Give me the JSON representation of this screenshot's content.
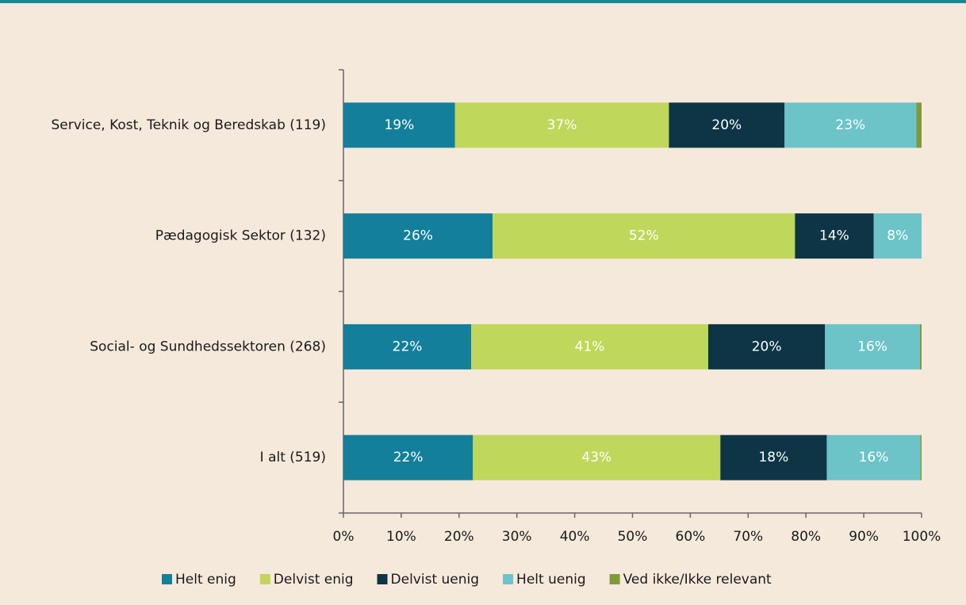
{
  "chart_data": {
    "type": "stacked_barh",
    "categories": [
      "Service, Kost, Teknik og Beredskab (119)",
      "Pædagogisk Sektor (132)",
      "Social- og Sundhedssektoren (268)",
      "I alt (519)"
    ],
    "series": [
      {
        "name": "Helt enig",
        "color": "#137f9a",
        "values": [
          19.3,
          25.8,
          22.1,
          22.4
        ],
        "value_labels": [
          "19%",
          "26%",
          "22%",
          "22%"
        ]
      },
      {
        "name": "Delvist enig",
        "color": "#bfd75a",
        "values": [
          37.0,
          52.3,
          41.0,
          42.8
        ],
        "value_labels": [
          "37%",
          "52%",
          "41%",
          "43%"
        ]
      },
      {
        "name": "Delvist uenig",
        "color": "#0d3545",
        "values": [
          20.0,
          13.6,
          20.2,
          18.4
        ],
        "value_labels": [
          "20%",
          "14%",
          "20%",
          "18%"
        ]
      },
      {
        "name": "Helt uenig",
        "color": "#6cc3c8",
        "values": [
          22.8,
          8.3,
          16.4,
          16.2
        ],
        "value_labels": [
          "23%",
          "8%",
          "16%",
          "16%"
        ]
      },
      {
        "name": "Ved ikke/Ikke relevant",
        "color": "#7f9a3a",
        "values": [
          0.9,
          0,
          0.3,
          0.2
        ]
      }
    ],
    "xlim": [
      0,
      100
    ],
    "xticks": [
      {
        "value": 0,
        "label": "0%"
      },
      {
        "value": 10,
        "label": "10%"
      },
      {
        "value": 20,
        "label": "20%"
      },
      {
        "value": 30,
        "label": "30%"
      },
      {
        "value": 40,
        "label": "40%"
      },
      {
        "value": 50,
        "label": "50%"
      },
      {
        "value": 60,
        "label": "60%"
      },
      {
        "value": 70,
        "label": "70%"
      },
      {
        "value": 80,
        "label": "80%"
      },
      {
        "value": 90,
        "label": "90%"
      },
      {
        "value": 100,
        "label": "100%"
      }
    ],
    "legend": "bottom"
  }
}
